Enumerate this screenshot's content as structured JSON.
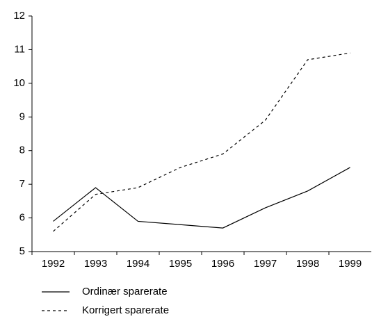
{
  "chart_data": {
    "type": "line",
    "categories": [
      "1992",
      "1993",
      "1994",
      "1995",
      "1996",
      "1997",
      "1998",
      "1999"
    ],
    "series": [
      {
        "name": "Ordinær sparerate",
        "color": "#000000",
        "dash": "solid",
        "values": [
          5.9,
          6.9,
          5.9,
          5.8,
          5.7,
          6.3,
          6.8,
          7.5
        ]
      },
      {
        "name": "Korrigert sparerate",
        "color": "#000000",
        "dash": "dashed",
        "values": [
          5.6,
          6.7,
          6.9,
          7.5,
          7.9,
          8.9,
          10.7,
          10.9
        ]
      }
    ],
    "ylim": [
      5,
      12
    ],
    "yticks": [
      5,
      6,
      7,
      8,
      9,
      10,
      11,
      12
    ],
    "grid": false
  }
}
